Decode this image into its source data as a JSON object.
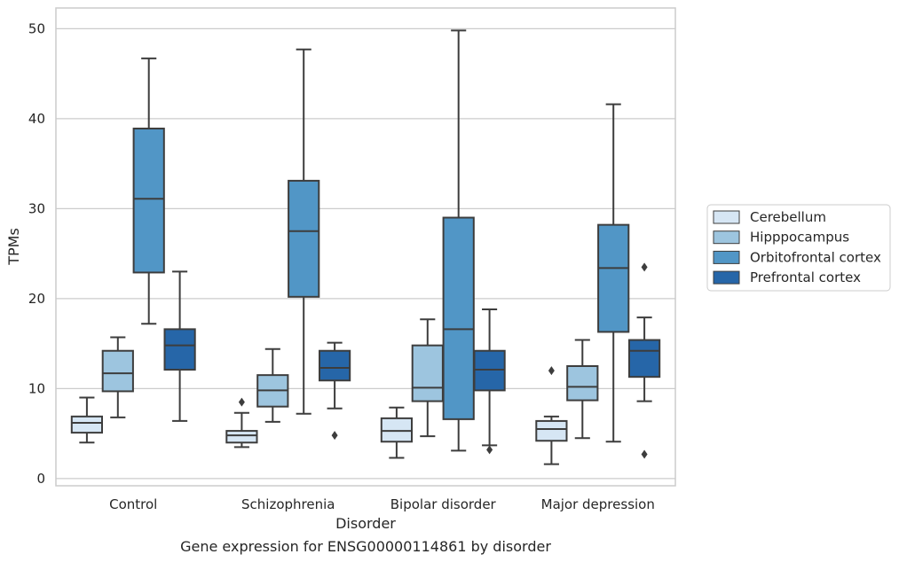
{
  "caption": "Gene expression for ENSG00000114861 by disorder",
  "colors": {
    "Cerebellum": "#d6e6f4",
    "Hipppocampus": "#9dc5df",
    "Orbitofrontal cortex": "#5196c6",
    "Prefrontal cortex": "#2666a8",
    "edge": "#3d3d3d",
    "grid": "#cccccc"
  },
  "chart_data": {
    "type": "box",
    "title": "",
    "xlabel": "Disorder",
    "ylabel": "TPMs",
    "ylim": [
      -0.8,
      52.3
    ],
    "yticks": [
      0,
      10,
      20,
      30,
      40,
      50
    ],
    "grid": true,
    "legend_position": "right",
    "categories": [
      "Control",
      "Schizophrenia",
      "Bipolar disorder",
      "Major depression"
    ],
    "series": [
      {
        "name": "Cerebellum",
        "boxes": [
          {
            "whislo": 4.0,
            "q1": 5.1,
            "med": 6.2,
            "q3": 6.9,
            "whishi": 9.0,
            "fliers": []
          },
          {
            "whislo": 3.5,
            "q1": 4.0,
            "med": 4.8,
            "q3": 5.3,
            "whishi": 7.3,
            "fliers": [
              8.5
            ]
          },
          {
            "whislo": 2.3,
            "q1": 4.1,
            "med": 5.3,
            "q3": 6.7,
            "whishi": 7.9,
            "fliers": []
          },
          {
            "whislo": 1.6,
            "q1": 4.2,
            "med": 5.5,
            "q3": 6.4,
            "whishi": 6.9,
            "fliers": [
              12.0
            ]
          }
        ]
      },
      {
        "name": "Hipppocampus",
        "boxes": [
          {
            "whislo": 6.8,
            "q1": 9.7,
            "med": 11.7,
            "q3": 14.2,
            "whishi": 15.7,
            "fliers": []
          },
          {
            "whislo": 6.3,
            "q1": 8.0,
            "med": 9.8,
            "q3": 11.5,
            "whishi": 14.4,
            "fliers": []
          },
          {
            "whislo": 4.7,
            "q1": 8.6,
            "med": 10.1,
            "q3": 14.8,
            "whishi": 17.7,
            "fliers": []
          },
          {
            "whislo": 4.5,
            "q1": 8.7,
            "med": 10.2,
            "q3": 12.5,
            "whishi": 15.4,
            "fliers": []
          }
        ]
      },
      {
        "name": "Orbitofrontal cortex",
        "boxes": [
          {
            "whislo": 17.2,
            "q1": 22.9,
            "med": 31.1,
            "q3": 38.9,
            "whishi": 46.7,
            "fliers": []
          },
          {
            "whislo": 7.2,
            "q1": 20.2,
            "med": 27.5,
            "q3": 33.1,
            "whishi": 47.7,
            "fliers": []
          },
          {
            "whislo": 3.1,
            "q1": 6.6,
            "med": 16.6,
            "q3": 29.0,
            "whishi": 49.8,
            "fliers": []
          },
          {
            "whislo": 4.1,
            "q1": 16.3,
            "med": 23.4,
            "q3": 28.2,
            "whishi": 41.6,
            "fliers": []
          }
        ]
      },
      {
        "name": "Prefrontal cortex",
        "boxes": [
          {
            "whislo": 6.4,
            "q1": 12.1,
            "med": 14.8,
            "q3": 16.6,
            "whishi": 23.0,
            "fliers": []
          },
          {
            "whislo": 7.8,
            "q1": 10.9,
            "med": 12.3,
            "q3": 14.2,
            "whishi": 15.1,
            "fliers": [
              4.8
            ]
          },
          {
            "whislo": 3.7,
            "q1": 9.8,
            "med": 12.1,
            "q3": 14.2,
            "whishi": 18.8,
            "fliers": [
              3.2
            ]
          },
          {
            "whislo": 8.6,
            "q1": 11.3,
            "med": 14.2,
            "q3": 15.4,
            "whishi": 17.9,
            "fliers": [
              23.5,
              2.7
            ]
          }
        ]
      }
    ]
  }
}
